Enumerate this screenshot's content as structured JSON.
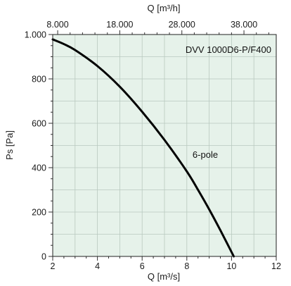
{
  "chart_data": {
    "type": "line",
    "title": "DVV 1000D6-P/F400",
    "xlabel": "Q [m³/s]",
    "ylabel": "Ps [Pa]",
    "x2label": "Q [m³/h]",
    "xlim": [
      2,
      12
    ],
    "ylim": [
      0,
      1000
    ],
    "x2lim": [
      7200,
      43200
    ],
    "xticks": [
      2,
      4,
      6,
      8,
      10,
      12
    ],
    "yticks": [
      0,
      200,
      400,
      600,
      800,
      "1.000"
    ],
    "x2ticks": [
      "8.000",
      "18.000",
      "28.000",
      "38.000"
    ],
    "x2tick_values": [
      8000,
      18000,
      28000,
      38000
    ],
    "grid": true,
    "plot_background": "#e6f2ea",
    "grid_color": "#b9c9bf",
    "line_color": "#000000",
    "series": [
      {
        "name": "6-pole",
        "x": [
          2.0,
          2.5,
          3.0,
          4.0,
          5.0,
          6.0,
          7.0,
          8.0,
          8.5,
          9.0,
          9.5,
          10.1
        ],
        "y": [
          978,
          957,
          930,
          858,
          765,
          652,
          525,
          383,
          300,
          212,
          118,
          0
        ]
      }
    ]
  }
}
